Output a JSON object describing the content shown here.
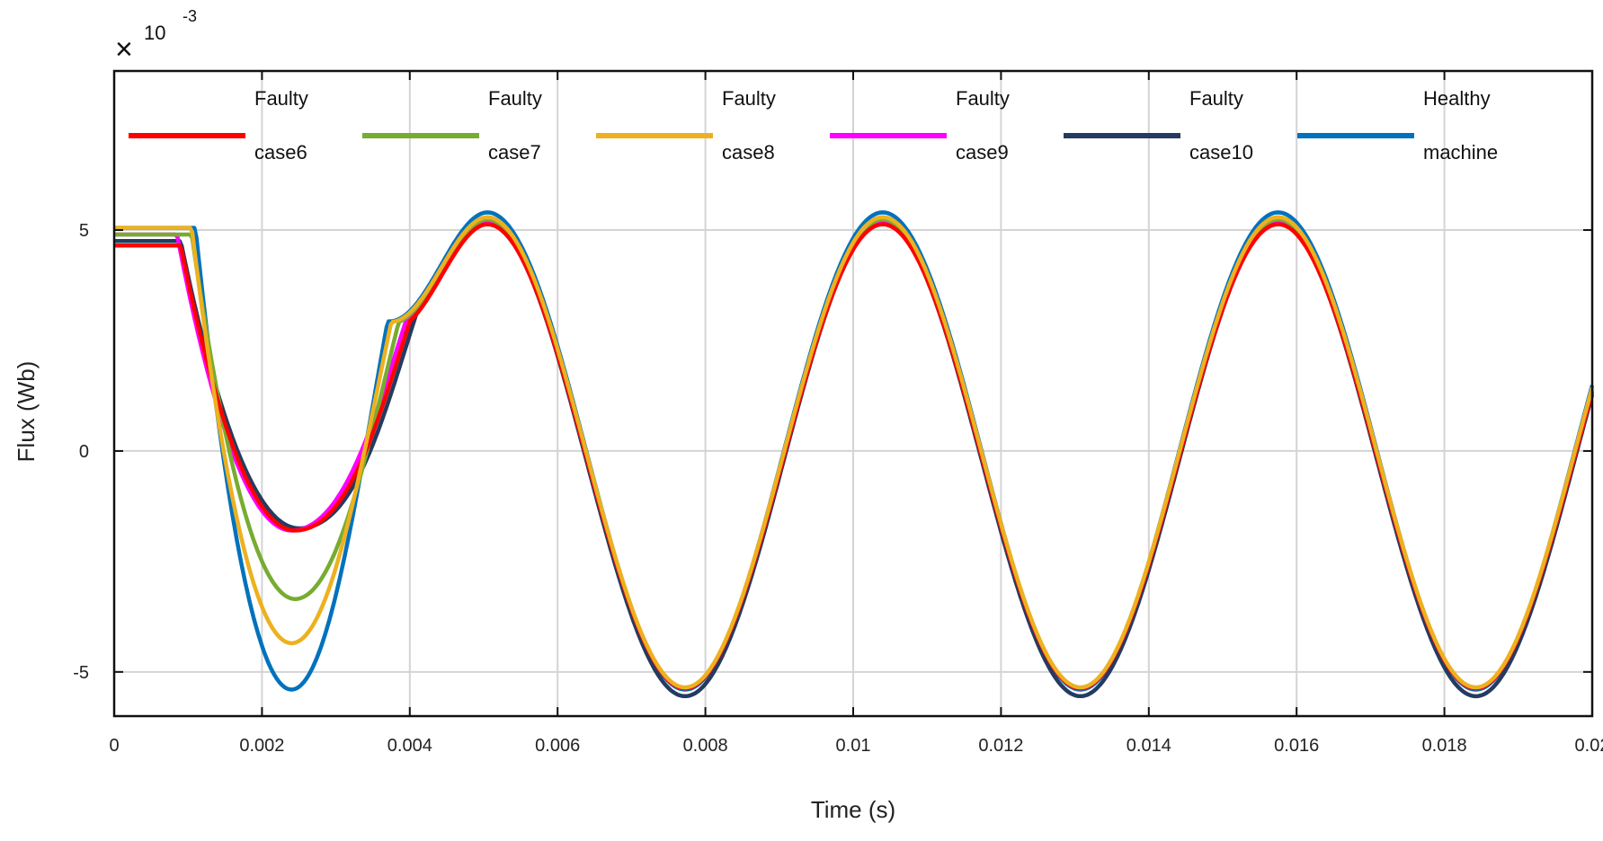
{
  "chart_data": {
    "type": "line",
    "title": "",
    "xlabel": "Time (s)",
    "ylabel": "Flux (Wb)",
    "xlim": [
      0,
      0.02
    ],
    "ylim": [
      -6.0,
      8.6
    ],
    "y_scale_note": {
      "base": "10",
      "exponent": "-3",
      "multiplier": "×"
    },
    "x_ticks": [
      0,
      0.002,
      0.004,
      0.006,
      0.008,
      0.01,
      0.012,
      0.014,
      0.016,
      0.018,
      0.02
    ],
    "x_tick_labels": [
      "0",
      "0.002",
      "0.004",
      "0.006",
      "0.008",
      "0.01",
      "0.012",
      "0.014",
      "0.016",
      "0.018",
      "0.02"
    ],
    "y_ticks": [
      -5,
      0,
      5
    ],
    "y_tick_labels": [
      "-5",
      "0",
      "5"
    ],
    "grid": true,
    "legend_position": "top",
    "series": [
      {
        "name": "case6",
        "label_top": "Faulty",
        "label_bottom": "case6",
        "color": "#ff0000",
        "offset": -0.12,
        "amp": 5.25,
        "trough": -1.8,
        "trough_time": 0.00245,
        "trough_width": 0.00155,
        "start": 4.65
      },
      {
        "name": "case7",
        "label_top": "Faulty",
        "label_bottom": "case7",
        "color": "#77ac30",
        "offset": -0.06,
        "amp": 5.3,
        "trough": -3.35,
        "trough_time": 0.00245,
        "trough_width": 0.0014,
        "start": 4.9
      },
      {
        "name": "case8",
        "label_top": "Faulty",
        "label_bottom": "case8",
        "color": "#edb120",
        "offset": -0.03,
        "amp": 5.32,
        "trough": -4.35,
        "trough_time": 0.0024,
        "trough_width": 0.00135,
        "start": 5.05
      },
      {
        "name": "case9",
        "label_top": "Faulty",
        "label_bottom": "case9",
        "color": "#ff00ff",
        "offset": -0.09,
        "amp": 5.28,
        "trough": -1.8,
        "trough_time": 0.0024,
        "trough_width": 0.00155,
        "start": 4.9
      },
      {
        "name": "case10",
        "label_top": "Faulty",
        "label_bottom": "case10",
        "color": "#243b61",
        "offset": -0.2,
        "amp": 5.35,
        "trough": -1.75,
        "trough_time": 0.0025,
        "trough_width": 0.0016,
        "start": 4.75
      },
      {
        "name": "Healthy machine",
        "label_top": "Healthy",
        "label_bottom": "machine",
        "color": "#0072bd",
        "offset": 0.0,
        "amp": 5.4,
        "trough": -5.4,
        "trough_time": 0.0024,
        "trough_width": 0.0013,
        "start": 5.05
      }
    ],
    "period": 0.00535,
    "peak_time": 0.00505
  }
}
